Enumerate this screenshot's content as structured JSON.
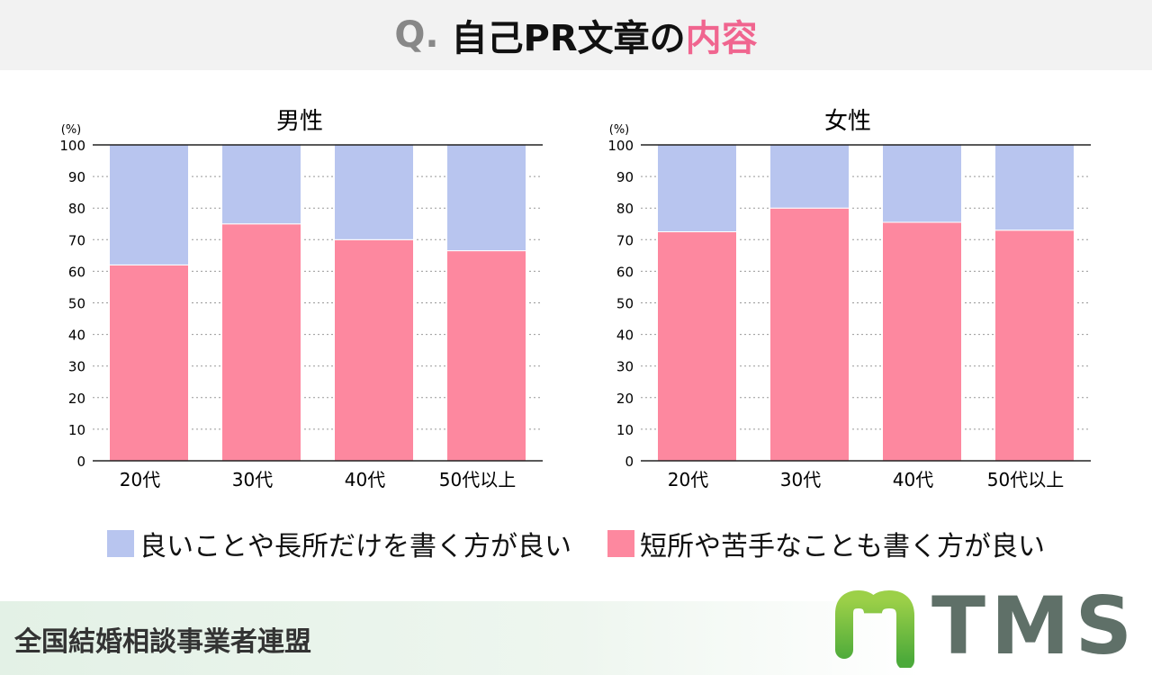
{
  "header": {
    "q": "Q.",
    "title_main": "自己PR文章の",
    "title_highlight": "内容"
  },
  "colors": {
    "positive_only": "#b8c5ef",
    "include_weakness": "#fd889f",
    "highlight": "#f0658f"
  },
  "chart_data": [
    {
      "type": "bar",
      "stacked": true,
      "title": "男性",
      "unit_label": "(%)",
      "ylim": [
        0,
        100
      ],
      "yticks": [
        0,
        10,
        20,
        30,
        40,
        50,
        60,
        70,
        80,
        90,
        100
      ],
      "grid": "dotted horizontal",
      "categories": [
        "20代",
        "30代",
        "40代",
        "50代以上"
      ],
      "series": [
        {
          "name": "短所や苦手なことも書く方が良い",
          "values": [
            62,
            75,
            70,
            66.5
          ]
        },
        {
          "name": "良いことや長所だけを書く方が良い",
          "values": [
            38,
            25,
            30,
            33.5
          ]
        }
      ]
    },
    {
      "type": "bar",
      "stacked": true,
      "title": "女性",
      "unit_label": "(%)",
      "ylim": [
        0,
        100
      ],
      "yticks": [
        0,
        10,
        20,
        30,
        40,
        50,
        60,
        70,
        80,
        90,
        100
      ],
      "grid": "dotted horizontal",
      "categories": [
        "20代",
        "30代",
        "40代",
        "50代以上"
      ],
      "series": [
        {
          "name": "短所や苦手なことも書く方が良い",
          "values": [
            72.5,
            80,
            75.5,
            73
          ]
        },
        {
          "name": "良いことや長所だけを書く方が良い",
          "values": [
            27.5,
            20,
            24.5,
            27
          ]
        }
      ]
    }
  ],
  "legend": {
    "position": "bottom",
    "items": [
      "良いことや長所だけを書く方が良い",
      "短所や苦手なことも書く方が良い"
    ]
  },
  "footer": {
    "organization": "全国結婚相談事業者連盟",
    "logo_text": "TMS"
  }
}
